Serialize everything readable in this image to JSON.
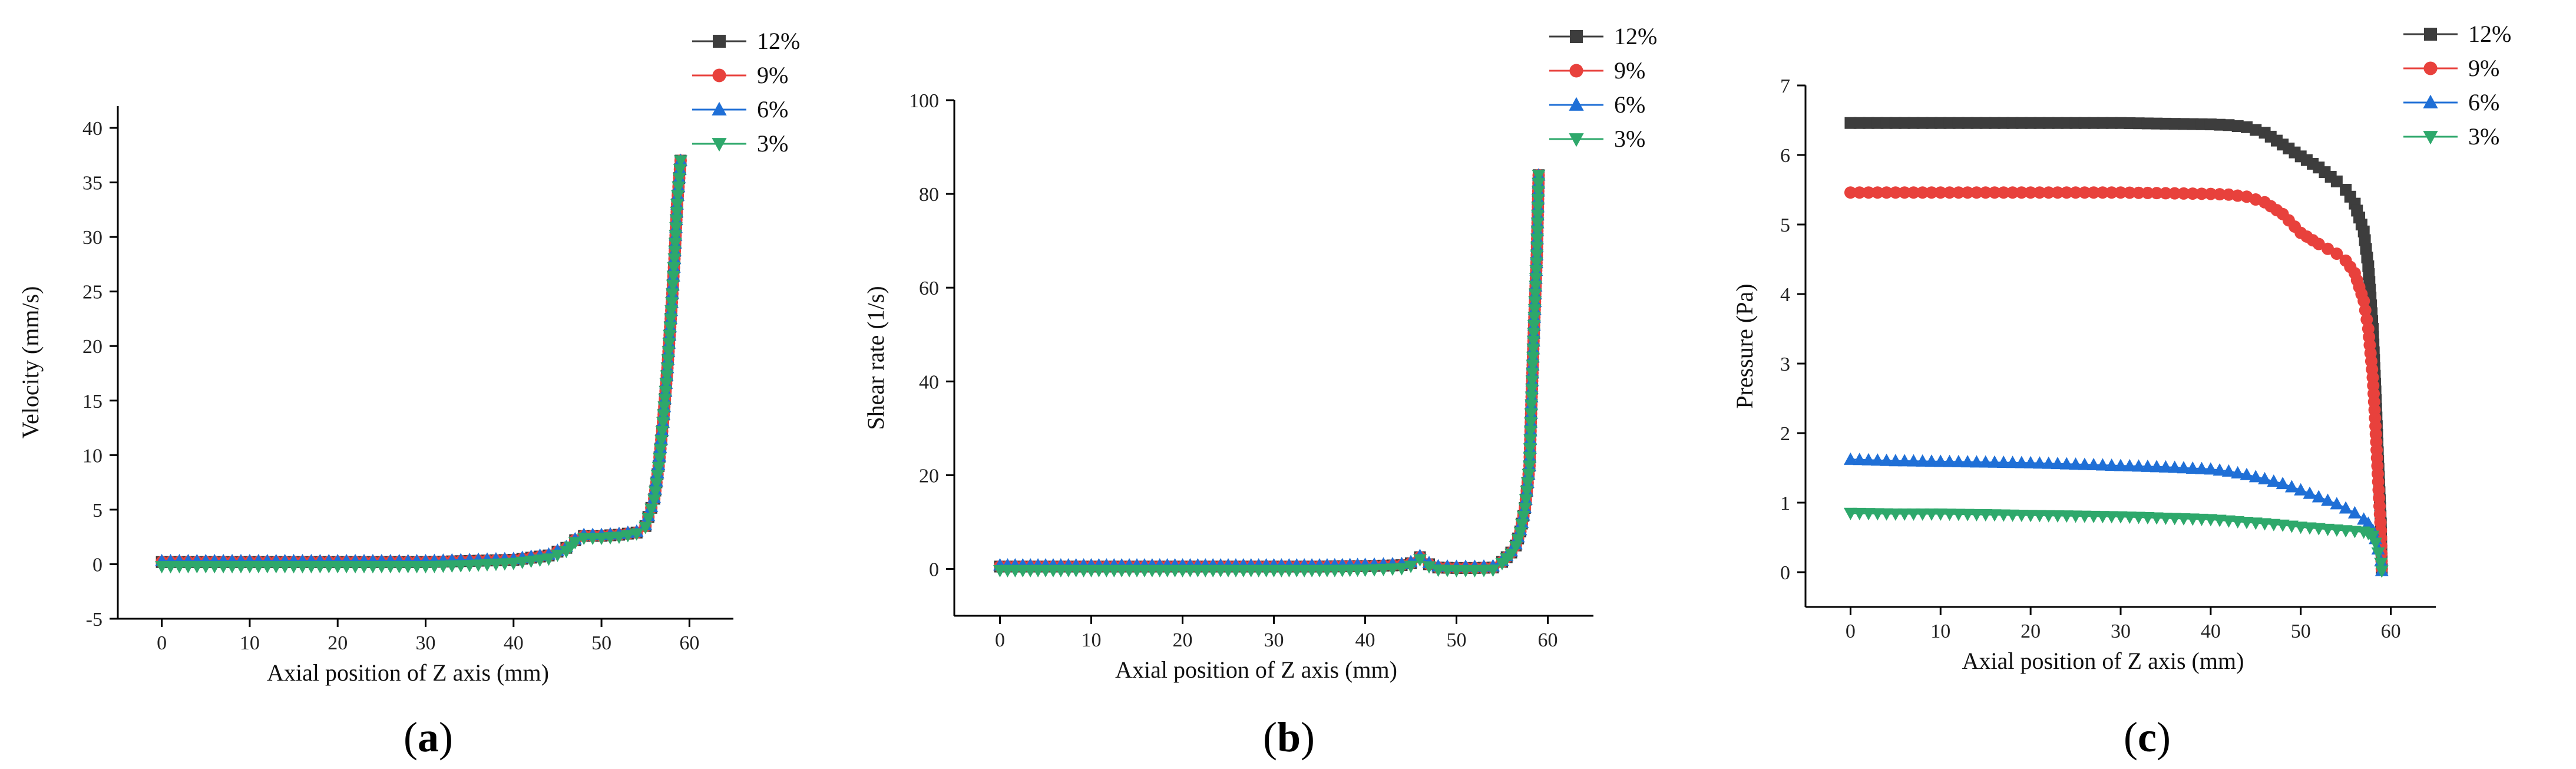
{
  "figure_labels": {
    "a": {
      "open": "(",
      "letter": "a",
      "close": ")"
    },
    "b": {
      "open": "(",
      "letter": "b",
      "close": ")"
    },
    "c": {
      "open": "(",
      "letter": "c",
      "close": ")"
    }
  },
  "series_colors": {
    "12%": "#3d3d3d",
    "9%": "#e8413c",
    "6%": "#1f6fd6",
    "3%": "#2ea86b"
  },
  "series_markers": {
    "12%": "square",
    "9%": "circle",
    "6%": "triangle-up",
    "3%": "triangle-down"
  },
  "chart_data": [
    {
      "type": "line",
      "title": "",
      "panel": "a",
      "xlabel": "Axial position of Z axis (mm)",
      "ylabel": "Velocity (mm/s)",
      "xlim": [
        -5,
        65
      ],
      "ylim": [
        -5,
        42
      ],
      "xticks": [
        0,
        10,
        20,
        30,
        40,
        50,
        60
      ],
      "yticks": [
        -5,
        0,
        5,
        10,
        15,
        20,
        25,
        30,
        35,
        40
      ],
      "legend_position": "top-right",
      "series": [
        {
          "name": "12%",
          "x": [
            0,
            5,
            10,
            15,
            20,
            25,
            30,
            35,
            40,
            44,
            46,
            47,
            48,
            49,
            50,
            52,
            54,
            55,
            56,
            56.5,
            57,
            57.5,
            58,
            58.3,
            58.6,
            59
          ],
          "y": [
            0.2,
            0.2,
            0.2,
            0.2,
            0.2,
            0.2,
            0.2,
            0.3,
            0.4,
            0.8,
            1.5,
            2.2,
            2.6,
            2.6,
            2.6,
            2.7,
            2.9,
            3.5,
            6,
            9,
            13,
            18,
            24,
            28,
            33,
            37
          ]
        },
        {
          "name": "9%",
          "x": [
            0,
            5,
            10,
            15,
            20,
            25,
            30,
            35,
            40,
            44,
            46,
            47,
            48,
            49,
            50,
            52,
            54,
            55,
            56,
            56.5,
            57,
            57.5,
            58,
            58.3,
            58.6,
            59
          ],
          "y": [
            0.2,
            0.2,
            0.2,
            0.2,
            0.2,
            0.2,
            0.2,
            0.3,
            0.4,
            0.8,
            1.5,
            2.2,
            2.6,
            2.6,
            2.6,
            2.7,
            2.9,
            3.5,
            6,
            9,
            13,
            18,
            24,
            28,
            33,
            37
          ]
        },
        {
          "name": "6%",
          "x": [
            0,
            5,
            10,
            15,
            20,
            25,
            30,
            35,
            40,
            44,
            46,
            47,
            48,
            49,
            50,
            52,
            54,
            55,
            56,
            56.5,
            57,
            57.5,
            58,
            58.3,
            58.6,
            59
          ],
          "y": [
            0.3,
            0.3,
            0.3,
            0.3,
            0.3,
            0.3,
            0.3,
            0.4,
            0.5,
            0.9,
            1.6,
            2.3,
            2.7,
            2.7,
            2.7,
            2.8,
            3.0,
            3.6,
            6.1,
            9.1,
            13,
            18,
            24,
            28,
            33,
            37
          ]
        },
        {
          "name": "3%",
          "x": [
            0,
            5,
            10,
            15,
            20,
            25,
            30,
            35,
            40,
            44,
            46,
            47,
            48,
            49,
            50,
            52,
            54,
            55,
            56,
            56.5,
            57,
            57.5,
            58,
            58.3,
            58.6,
            59
          ],
          "y": [
            -0.2,
            -0.2,
            -0.2,
            -0.2,
            -0.2,
            -0.2,
            -0.2,
            -0.1,
            0.1,
            0.5,
            1.2,
            2.0,
            2.4,
            2.4,
            2.4,
            2.5,
            2.8,
            3.4,
            5.9,
            8.9,
            13,
            18,
            24,
            28,
            33,
            37
          ]
        }
      ]
    },
    {
      "type": "line",
      "title": "",
      "panel": "b",
      "xlabel": "Axial position of Z axis (mm)",
      "ylabel": "Shear rate (1/s)",
      "xlim": [
        -5,
        65
      ],
      "ylim": [
        -10,
        100
      ],
      "xticks": [
        0,
        10,
        20,
        30,
        40,
        50,
        60
      ],
      "yticks": [
        0,
        20,
        40,
        60,
        80,
        100
      ],
      "legend_position": "top-right",
      "series": [
        {
          "name": "12%",
          "x": [
            0,
            5,
            10,
            15,
            20,
            25,
            30,
            35,
            40,
            44,
            45,
            46,
            47,
            48,
            50,
            52,
            54,
            55,
            56,
            56.5,
            57,
            57.5,
            58,
            58.2,
            58.5,
            58.8,
            59
          ],
          "y": [
            0.5,
            0.5,
            0.5,
            0.5,
            0.5,
            0.5,
            0.5,
            0.5,
            0.6,
            0.8,
            1.2,
            2.5,
            1.0,
            0.3,
            0.2,
            0.2,
            0.3,
            1.5,
            3.5,
            5,
            8,
            13,
            22,
            35,
            52,
            67,
            84
          ]
        },
        {
          "name": "9%",
          "x": [
            0,
            5,
            10,
            15,
            20,
            25,
            30,
            35,
            40,
            44,
            45,
            46,
            47,
            48,
            50,
            52,
            54,
            55,
            56,
            56.5,
            57,
            57.5,
            58,
            58.2,
            58.5,
            58.8,
            59
          ],
          "y": [
            0.5,
            0.5,
            0.5,
            0.5,
            0.5,
            0.5,
            0.5,
            0.5,
            0.6,
            0.8,
            1.2,
            2.5,
            1.0,
            0.3,
            0.2,
            0.2,
            0.3,
            1.5,
            3.5,
            5,
            8,
            13,
            22,
            35,
            52,
            67,
            84
          ]
        },
        {
          "name": "6%",
          "x": [
            0,
            5,
            10,
            15,
            20,
            25,
            30,
            35,
            40,
            44,
            45,
            46,
            47,
            48,
            50,
            52,
            54,
            55,
            56,
            56.5,
            57,
            57.5,
            58,
            58.2,
            58.5,
            58.8,
            59
          ],
          "y": [
            0.8,
            0.8,
            0.8,
            0.8,
            0.8,
            0.8,
            0.8,
            0.8,
            0.9,
            1.1,
            1.5,
            2.8,
            1.3,
            0.6,
            0.5,
            0.5,
            0.6,
            1.8,
            3.8,
            5.3,
            8.3,
            13,
            22,
            35,
            52,
            67,
            84
          ]
        },
        {
          "name": "3%",
          "x": [
            0,
            5,
            10,
            15,
            20,
            25,
            30,
            35,
            40,
            44,
            45,
            46,
            47,
            48,
            50,
            52,
            54,
            55,
            56,
            56.5,
            57,
            57.5,
            58,
            58.2,
            58.5,
            58.8,
            59
          ],
          "y": [
            -0.3,
            -0.3,
            -0.3,
            -0.3,
            -0.3,
            -0.3,
            -0.3,
            -0.3,
            -0.2,
            0.1,
            0.6,
            2.0,
            0.5,
            -0.2,
            -0.3,
            -0.3,
            -0.2,
            1.2,
            3.2,
            4.8,
            7.8,
            13,
            22,
            35,
            52,
            67,
            84
          ]
        }
      ]
    },
    {
      "type": "line",
      "title": "",
      "panel": "c",
      "xlabel": "Axial position of Z axis (mm)",
      "ylabel": "Pressure (Pa)",
      "xlim": [
        -5,
        65
      ],
      "ylim": [
        -0.5,
        7
      ],
      "xticks": [
        0,
        10,
        20,
        30,
        40,
        50,
        60
      ],
      "yticks": [
        0,
        1,
        2,
        3,
        4,
        5,
        6,
        7
      ],
      "legend_position": "top-right",
      "series": [
        {
          "name": "12%",
          "x": [
            0,
            5,
            10,
            15,
            20,
            25,
            30,
            35,
            40,
            42,
            44,
            46,
            48,
            50,
            52,
            54,
            55,
            56,
            57,
            57.5,
            58,
            58.3,
            58.6,
            58.9,
            59
          ],
          "y": [
            6.46,
            6.46,
            6.46,
            6.46,
            6.46,
            6.46,
            6.46,
            6.45,
            6.44,
            6.43,
            6.4,
            6.32,
            6.15,
            5.98,
            5.82,
            5.62,
            5.5,
            5.3,
            4.9,
            4.4,
            3.5,
            2.6,
            1.6,
            0.7,
            0.05
          ]
        },
        {
          "name": "9%",
          "x": [
            0,
            5,
            10,
            15,
            20,
            25,
            30,
            35,
            40,
            42,
            44,
            46,
            48,
            50,
            52,
            54,
            55,
            56,
            57,
            57.5,
            58,
            58.3,
            58.6,
            58.9,
            59
          ],
          "y": [
            5.46,
            5.46,
            5.46,
            5.46,
            5.46,
            5.46,
            5.46,
            5.45,
            5.44,
            5.43,
            5.4,
            5.32,
            5.15,
            4.88,
            4.72,
            4.58,
            4.48,
            4.3,
            3.9,
            3.5,
            2.8,
            2.1,
            1.3,
            0.6,
            0.05
          ]
        },
        {
          "name": "6%",
          "x": [
            0,
            5,
            10,
            15,
            20,
            25,
            30,
            35,
            40,
            42,
            44,
            46,
            48,
            50,
            52,
            54,
            55,
            56,
            57,
            57.5,
            58,
            58.3,
            58.6,
            58.9,
            59
          ],
          "y": [
            1.62,
            1.6,
            1.59,
            1.58,
            1.57,
            1.55,
            1.53,
            1.51,
            1.48,
            1.45,
            1.4,
            1.34,
            1.27,
            1.18,
            1.08,
            0.98,
            0.92,
            0.85,
            0.76,
            0.7,
            0.6,
            0.48,
            0.33,
            0.16,
            0.02
          ]
        },
        {
          "name": "3%",
          "x": [
            0,
            5,
            10,
            15,
            20,
            25,
            30,
            35,
            40,
            42,
            44,
            46,
            48,
            50,
            52,
            54,
            55,
            56,
            57,
            57.5,
            58,
            58.3,
            58.6,
            58.9,
            59
          ],
          "y": [
            0.85,
            0.84,
            0.84,
            0.83,
            0.82,
            0.81,
            0.8,
            0.78,
            0.76,
            0.74,
            0.72,
            0.7,
            0.68,
            0.65,
            0.63,
            0.61,
            0.6,
            0.59,
            0.58,
            0.56,
            0.52,
            0.42,
            0.28,
            0.13,
            0.02
          ]
        }
      ]
    }
  ]
}
